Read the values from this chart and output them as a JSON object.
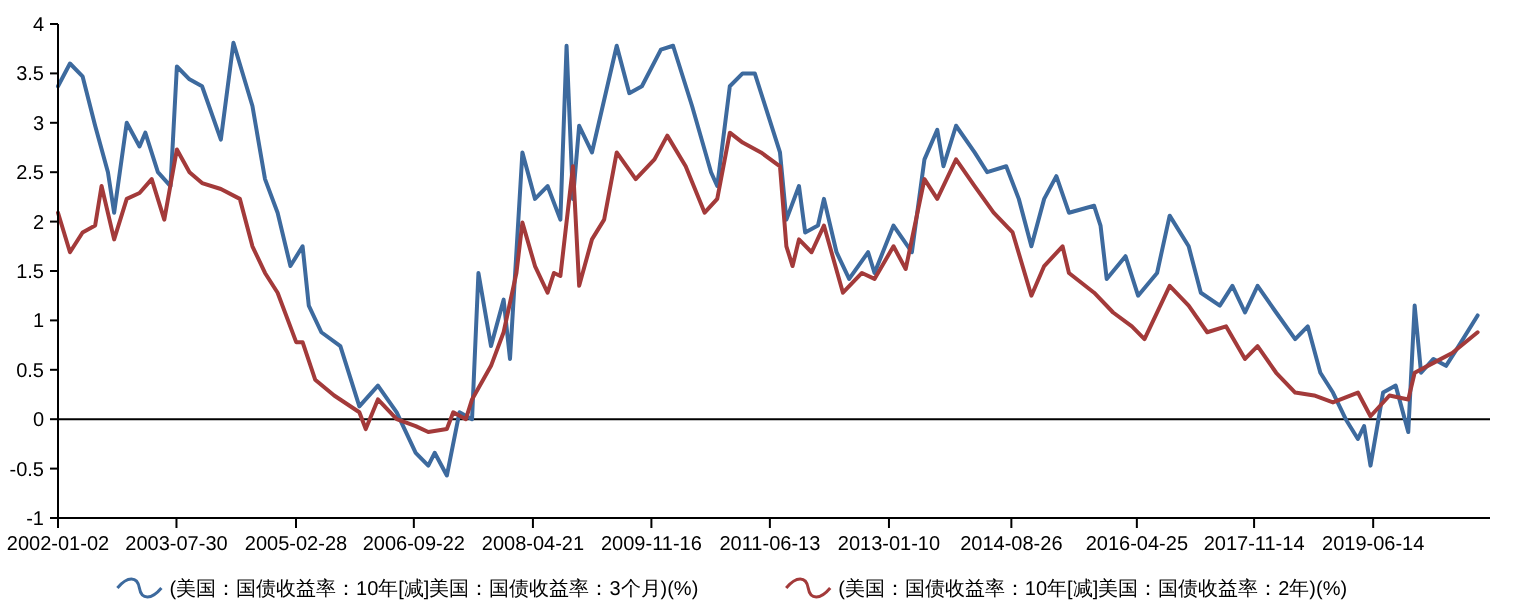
{
  "chart_data": {
    "type": "line",
    "xlim": [
      "2002-01-02",
      "2020-12-31"
    ],
    "xticks": [
      "2002-01-02",
      "2003-07-30",
      "2005-02-28",
      "2006-09-22",
      "2008-04-21",
      "2009-11-16",
      "2011-06-13",
      "2013-01-10",
      "2014-08-26",
      "2016-04-25",
      "2017-11-14",
      "2019-06-14"
    ],
    "ylim": [
      -1,
      4
    ],
    "yticks": [
      -1,
      -0.5,
      0,
      0.5,
      1,
      1.5,
      2,
      2.5,
      3,
      3.5,
      4
    ],
    "grid": false,
    "legend": "bottom",
    "marker": "none",
    "line_style": "solid",
    "ref_lines": [
      {
        "axis": "y",
        "value": 0,
        "color": "#000000"
      }
    ],
    "series": [
      {
        "name": "(美国：国债收益率：10年[减]美国：国债收益率：3个月)(%)",
        "color": "#3d6a9e",
        "x": [
          "2002-01-02",
          "2002-03",
          "2002-05",
          "2002-07",
          "2002-09",
          "2002-10",
          "2002-12",
          "2003-02",
          "2003-03",
          "2003-05",
          "2003-07",
          "2003-08",
          "2003-10",
          "2003-12",
          "2004-03",
          "2004-05",
          "2004-08",
          "2004-10",
          "2004-12",
          "2005-02",
          "2005-04",
          "2005-05",
          "2005-07",
          "2005-10",
          "2006-01",
          "2006-04",
          "2006-07",
          "2006-10",
          "2006-12",
          "2007-01",
          "2007-03",
          "2007-05",
          "2007-07",
          "2007-08",
          "2007-10",
          "2007-12",
          "2008-01",
          "2008-03",
          "2008-05",
          "2008-07",
          "2008-09",
          "2008-10",
          "2008-11",
          "2008-12",
          "2009-02",
          "2009-06",
          "2009-08",
          "2009-10",
          "2010-01",
          "2010-03",
          "2010-06",
          "2010-09",
          "2010-10",
          "2010-12",
          "2011-02",
          "2011-04",
          "2011-06",
          "2011-08",
          "2011-09",
          "2011-11",
          "2011-12",
          "2012-02",
          "2012-03",
          "2012-05",
          "2012-07",
          "2012-10",
          "2012-11",
          "2013-02",
          "2013-05",
          "2013-07",
          "2013-09",
          "2013-10",
          "2013-12",
          "2014-03",
          "2014-05",
          "2014-08",
          "2014-10",
          "2014-12",
          "2015-02",
          "2015-04",
          "2015-06",
          "2015-10",
          "2015-11",
          "2015-12",
          "2016-03",
          "2016-05",
          "2016-08",
          "2016-10",
          "2017-01",
          "2017-03",
          "2017-06",
          "2017-08",
          "2017-10",
          "2017-12",
          "2018-03",
          "2018-06",
          "2018-08",
          "2018-10",
          "2018-12",
          "2019-02",
          "2019-04",
          "2019-05",
          "2019-06",
          "2019-08",
          "2019-10",
          "2019-12",
          "2020-01",
          "2020-02",
          "2020-04",
          "2020-06",
          "2020-08",
          "2020-11"
        ],
        "values": [
          3.37,
          3.6,
          3.47,
          2.97,
          2.5,
          2.09,
          3.0,
          2.76,
          2.9,
          2.5,
          2.36,
          3.57,
          3.44,
          3.37,
          2.83,
          3.81,
          3.17,
          2.43,
          2.09,
          1.55,
          1.75,
          1.15,
          0.88,
          0.74,
          0.13,
          0.34,
          0.07,
          -0.34,
          -0.47,
          -0.34,
          -0.57,
          0.07,
          0,
          1.48,
          0.74,
          1.21,
          0.61,
          2.7,
          2.23,
          2.36,
          2.02,
          3.78,
          2.23,
          2.97,
          2.7,
          3.78,
          3.3,
          3.37,
          3.74,
          3.78,
          3.17,
          2.5,
          2.36,
          3.37,
          3.5,
          3.5,
          3.1,
          2.7,
          2.02,
          2.36,
          1.89,
          1.96,
          2.23,
          1.69,
          1.42,
          1.69,
          1.48,
          1.96,
          1.69,
          2.63,
          2.93,
          2.56,
          2.97,
          2.7,
          2.5,
          2.56,
          2.23,
          1.75,
          2.23,
          2.46,
          2.09,
          2.16,
          1.96,
          1.42,
          1.65,
          1.25,
          1.48,
          2.06,
          1.75,
          1.28,
          1.15,
          1.35,
          1.08,
          1.35,
          1.08,
          0.81,
          0.94,
          0.47,
          0.27,
          0,
          -0.2,
          -0.07,
          -0.47,
          0.27,
          0.34,
          -0.13,
          1.15,
          0.47,
          0.61,
          0.54,
          0.74,
          1.05
        ]
      },
      {
        "name": "(美国：国债收益率：10年[减]美国：国债收益率：2年)(%)",
        "color": "#a33a3a",
        "x": [
          "2002-01-02",
          "2002-03",
          "2002-05",
          "2002-07",
          "2002-08",
          "2002-10",
          "2002-12",
          "2003-02",
          "2003-04",
          "2003-06",
          "2003-08",
          "2003-10",
          "2003-12",
          "2004-03",
          "2004-06",
          "2004-08",
          "2004-10",
          "2004-12",
          "2005-03",
          "2005-04",
          "2005-06",
          "2005-09",
          "2006-01",
          "2006-02",
          "2006-04",
          "2006-07",
          "2006-10",
          "2006-12",
          "2007-03",
          "2007-04",
          "2007-06",
          "2007-07",
          "2007-10",
          "2007-12",
          "2008-02",
          "2008-03",
          "2008-05",
          "2008-07",
          "2008-08",
          "2008-09",
          "2008-11",
          "2008-12",
          "2009-02",
          "2009-04",
          "2009-06",
          "2009-09",
          "2009-12",
          "2010-02",
          "2010-05",
          "2010-08",
          "2010-10",
          "2010-12",
          "2011-02",
          "2011-05",
          "2011-08",
          "2011-09",
          "2011-10",
          "2011-11",
          "2012-01",
          "2012-03",
          "2012-06",
          "2012-09",
          "2012-11",
          "2013-02",
          "2013-04",
          "2013-07",
          "2013-09",
          "2013-12",
          "2014-03",
          "2014-06",
          "2014-09",
          "2014-12",
          "2015-02",
          "2015-05",
          "2015-06",
          "2015-10",
          "2016-01",
          "2016-04",
          "2016-06",
          "2016-10",
          "2017-01",
          "2017-04",
          "2017-07",
          "2017-10",
          "2017-12",
          "2018-03",
          "2018-06",
          "2018-09",
          "2018-12",
          "2019-04",
          "2019-06",
          "2019-09",
          "2019-12",
          "2020-01",
          "2020-04",
          "2020-07",
          "2020-11"
        ],
        "values": [
          2.09,
          1.69,
          1.89,
          1.96,
          2.36,
          1.82,
          2.23,
          2.29,
          2.43,
          2.02,
          2.73,
          2.5,
          2.39,
          2.33,
          2.23,
          1.75,
          1.48,
          1.28,
          0.78,
          0.78,
          0.4,
          0.24,
          0.07,
          -0.1,
          0.2,
          0,
          -0.07,
          -0.13,
          -0.1,
          0.07,
          0,
          0.2,
          0.54,
          0.88,
          1.48,
          1.99,
          1.55,
          1.28,
          1.48,
          1.45,
          2.56,
          1.35,
          1.82,
          2.02,
          2.7,
          2.43,
          2.63,
          2.87,
          2.56,
          2.09,
          2.23,
          2.9,
          2.8,
          2.7,
          2.56,
          1.75,
          1.55,
          1.82,
          1.69,
          1.96,
          1.28,
          1.48,
          1.42,
          1.75,
          1.52,
          2.43,
          2.23,
          2.63,
          2.36,
          2.09,
          1.89,
          1.25,
          1.55,
          1.75,
          1.48,
          1.28,
          1.08,
          0.94,
          0.81,
          1.35,
          1.15,
          0.88,
          0.94,
          0.61,
          0.74,
          0.47,
          0.27,
          0.24,
          0.17,
          0.27,
          0.03,
          0.24,
          0.2,
          0.47,
          0.57,
          0.67,
          0.88
        ]
      }
    ]
  }
}
